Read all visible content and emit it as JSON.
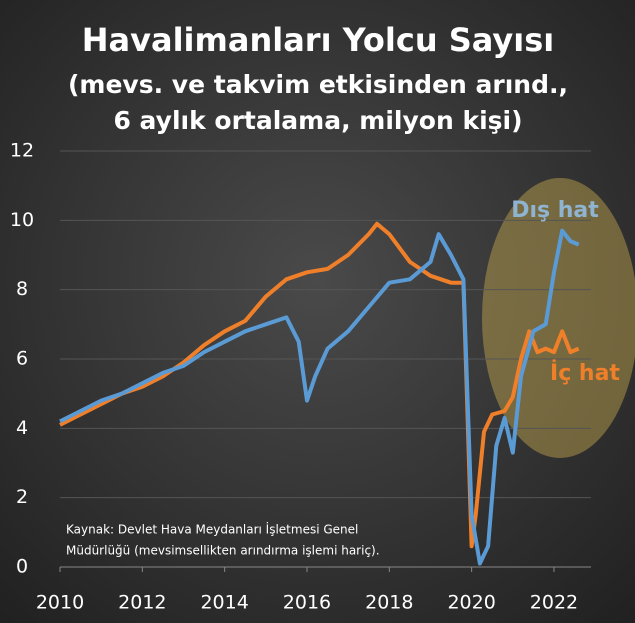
{
  "chart_data": {
    "type": "line",
    "title": "Havalimanları Yolcu Sayısı",
    "subtitle": [
      "(mevs. ve takvim etkisinden arınd.,",
      "6 aylık ortalama, milyon kişi)"
    ],
    "source": [
      "Kaynak: Devlet Hava Meydanları İşletmesi Genel",
      "Müdürlüğü (mevsimsellikten arındırma işlemi hariç)."
    ],
    "xlim": [
      2010,
      2022.9
    ],
    "xticks": [
      2010,
      2012,
      2014,
      2016,
      2018,
      2020,
      2022
    ],
    "ylim": [
      0,
      12
    ],
    "yticks": [
      0,
      2,
      4,
      6,
      8,
      10,
      12
    ],
    "grid": true,
    "series": [
      {
        "name": "İç hat",
        "color": "#f07f2a",
        "x": [
          2010,
          2010.5,
          2011,
          2011.5,
          2012,
          2012.5,
          2013,
          2013.5,
          2014,
          2014.5,
          2015,
          2015.5,
          2016,
          2016.5,
          2017,
          2017.5,
          2017.7,
          2018,
          2018.5,
          2019,
          2019.5,
          2019.8,
          2020,
          2020.1,
          2020.3,
          2020.5,
          2020.8,
          2021,
          2021.2,
          2021.4,
          2021.6,
          2021.8,
          2022,
          2022.2,
          2022.4,
          2022.6
        ],
        "values": [
          4.1,
          4.4,
          4.7,
          5.0,
          5.2,
          5.5,
          5.9,
          6.4,
          6.8,
          7.1,
          7.8,
          8.3,
          8.5,
          8.6,
          9.0,
          9.6,
          9.9,
          9.6,
          8.8,
          8.4,
          8.2,
          8.2,
          0.6,
          1.5,
          3.9,
          4.4,
          4.5,
          4.9,
          6.0,
          6.8,
          6.2,
          6.3,
          6.2,
          6.8,
          6.2,
          6.3
        ]
      },
      {
        "name": "Dış hat",
        "color": "#5b9bd5",
        "x": [
          2010,
          2010.5,
          2011,
          2011.5,
          2012,
          2012.5,
          2013,
          2013.5,
          2014,
          2014.5,
          2015,
          2015.5,
          2015.8,
          2016,
          2016.2,
          2016.5,
          2017,
          2017.5,
          2018,
          2018.5,
          2019,
          2019.2,
          2019.5,
          2019.8,
          2020,
          2020.2,
          2020.4,
          2020.6,
          2020.8,
          2021,
          2021.2,
          2021.5,
          2021.8,
          2022,
          2022.2,
          2022.4,
          2022.6
        ],
        "values": [
          4.2,
          4.5,
          4.8,
          5.0,
          5.3,
          5.6,
          5.8,
          6.2,
          6.5,
          6.8,
          7.0,
          7.2,
          6.5,
          4.8,
          5.5,
          6.3,
          6.8,
          7.5,
          8.2,
          8.3,
          8.8,
          9.6,
          9.0,
          8.3,
          1.5,
          0.1,
          0.6,
          3.5,
          4.3,
          3.3,
          5.5,
          6.8,
          7.0,
          8.5,
          9.7,
          9.4,
          9.3
        ]
      }
    ]
  }
}
